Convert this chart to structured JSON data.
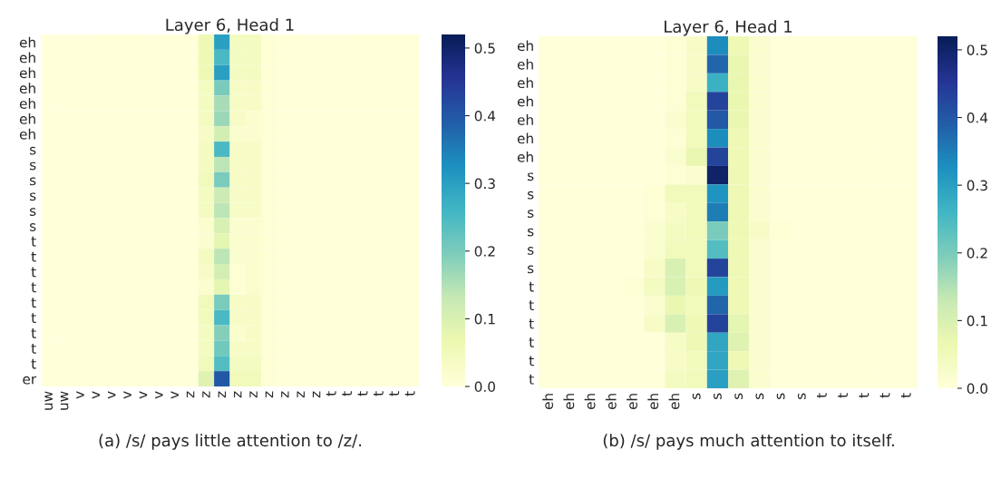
{
  "chart_data": [
    {
      "type": "heatmap",
      "title": "Layer 6, Head 1",
      "annotations": [
        "(a) /s/ pays little attention to /z/."
      ],
      "categories": [
        "uw",
        "uw",
        "v",
        "v",
        "v",
        "v",
        "v",
        "v",
        "v",
        "z",
        "z",
        "z",
        "z",
        "z",
        "z",
        "z",
        "z",
        "z",
        "t",
        "t",
        "t",
        "t",
        "t",
        "t"
      ],
      "y_categories": [
        "eh",
        "eh",
        "eh",
        "eh",
        "eh",
        "eh",
        "eh",
        "s",
        "s",
        "s",
        "s",
        "s",
        "s",
        "t",
        "t",
        "t",
        "t",
        "t",
        "t",
        "t",
        "t",
        "t",
        "er"
      ],
      "clim": [
        0,
        0.52
      ],
      "cticks": [
        {
          "value": 0,
          "label": "0.0"
        },
        0.1,
        0.2,
        0.3,
        0.4,
        0.5
      ],
      "cells": [
        [
          0,
          0,
          0,
          0,
          0,
          0,
          0,
          0,
          0,
          0,
          0.06,
          0.3,
          0.04,
          0.04,
          0.01,
          0,
          0,
          0,
          0,
          0,
          0,
          0,
          0,
          0
        ],
        [
          0,
          0,
          0,
          0,
          0,
          0,
          0,
          0,
          0,
          0,
          0.06,
          0.25,
          0.04,
          0.04,
          0.01,
          0,
          0,
          0,
          0,
          0,
          0,
          0,
          0,
          0
        ],
        [
          0,
          0,
          0,
          0,
          0,
          0,
          0,
          0,
          0,
          0,
          0.06,
          0.3,
          0.04,
          0.04,
          0.01,
          0,
          0,
          0,
          0,
          0,
          0,
          0,
          0,
          0
        ],
        [
          0,
          0,
          0,
          0,
          0,
          0,
          0,
          0,
          0,
          0,
          0.04,
          0.2,
          0.03,
          0.03,
          0.01,
          0,
          0,
          0,
          0,
          0,
          0,
          0,
          0,
          0
        ],
        [
          0,
          0,
          0,
          0,
          0,
          0,
          0,
          0,
          0,
          0,
          0.04,
          0.16,
          0.03,
          0.03,
          0.01,
          0,
          0,
          0,
          0,
          0,
          0,
          0,
          0,
          0
        ],
        [
          0,
          0,
          0,
          0,
          0,
          0,
          0,
          0,
          0,
          0,
          0.04,
          0.17,
          0.03,
          0.02,
          0.01,
          0,
          0,
          0,
          0,
          0,
          0,
          0,
          0,
          0
        ],
        [
          0,
          0,
          0,
          0,
          0,
          0,
          0,
          0,
          0,
          0,
          0.03,
          0.11,
          0.02,
          0.02,
          0.01,
          0,
          0,
          0,
          0,
          0,
          0,
          0,
          0,
          0
        ],
        [
          0,
          0,
          0,
          0,
          0,
          0,
          0,
          0,
          0,
          0,
          0.04,
          0.25,
          0.03,
          0.03,
          0.01,
          0,
          0,
          0,
          0,
          0,
          0,
          0,
          0,
          0
        ],
        [
          0,
          0,
          0,
          0,
          0,
          0,
          0,
          0,
          0,
          0,
          0.04,
          0.14,
          0.03,
          0.03,
          0.01,
          0,
          0,
          0,
          0,
          0,
          0,
          0,
          0,
          0
        ],
        [
          0,
          0,
          0,
          0,
          0,
          0,
          0,
          0,
          0,
          0,
          0.05,
          0.2,
          0.03,
          0.03,
          0.01,
          0,
          0,
          0,
          0,
          0,
          0,
          0,
          0,
          0
        ],
        [
          0,
          0,
          0,
          0,
          0,
          0,
          0,
          0,
          0,
          0,
          0.04,
          0.12,
          0.03,
          0.03,
          0.01,
          0,
          0,
          0,
          0,
          0,
          0,
          0,
          0,
          0
        ],
        [
          0,
          0,
          0,
          0,
          0,
          0,
          0,
          0,
          0,
          0,
          0.04,
          0.14,
          0.03,
          0.03,
          0.01,
          0,
          0,
          0,
          0,
          0,
          0,
          0,
          0,
          0
        ],
        [
          0,
          0,
          0,
          0,
          0,
          0,
          0,
          0,
          0,
          0,
          0.02,
          0.1,
          0.02,
          0.02,
          0.01,
          0,
          0,
          0,
          0,
          0,
          0,
          0,
          0,
          0
        ],
        [
          0,
          0,
          0,
          0,
          0,
          0,
          0,
          0,
          0,
          0,
          0.02,
          0.08,
          0.02,
          0.02,
          0.01,
          0,
          0,
          0,
          0,
          0,
          0,
          0,
          0,
          0
        ],
        [
          0,
          0,
          0,
          0,
          0,
          0,
          0,
          0,
          0,
          0,
          0.04,
          0.14,
          0.02,
          0.02,
          0.01,
          0,
          0,
          0,
          0,
          0,
          0,
          0,
          0,
          0
        ],
        [
          0,
          0,
          0,
          0,
          0,
          0,
          0,
          0,
          0,
          0,
          0.03,
          0.11,
          0.01,
          0.02,
          0.01,
          0,
          0,
          0,
          0,
          0,
          0,
          0,
          0,
          0
        ],
        [
          0,
          0,
          0,
          0,
          0,
          0,
          0,
          0,
          0,
          0,
          0.02,
          0.08,
          0.01,
          0.02,
          0.01,
          0,
          0,
          0,
          0,
          0,
          0,
          0,
          0,
          0
        ],
        [
          0,
          0,
          0,
          0,
          0,
          0,
          0,
          0,
          0,
          0,
          0.05,
          0.2,
          0.03,
          0.03,
          0.01,
          0,
          0,
          0,
          0,
          0,
          0,
          0,
          0,
          0
        ],
        [
          0,
          0,
          0,
          0,
          0,
          0,
          0,
          0,
          0,
          0,
          0.05,
          0.25,
          0.03,
          0.03,
          0.01,
          0,
          0,
          0,
          0,
          0,
          0,
          0,
          0,
          0
        ],
        [
          0,
          0,
          0,
          0,
          0,
          0,
          0,
          0,
          0,
          0,
          0.04,
          0.19,
          0.02,
          0.03,
          0.01,
          0,
          0,
          0,
          0,
          0,
          0,
          0,
          0,
          0
        ],
        [
          0,
          0,
          0,
          0,
          0,
          0,
          0,
          0,
          0,
          0,
          0.04,
          0.21,
          0.03,
          0.03,
          0.01,
          0,
          0,
          0,
          0,
          0,
          0,
          0,
          0,
          0
        ],
        [
          0,
          0,
          0,
          0,
          0,
          0,
          0,
          0,
          0,
          0,
          0.05,
          0.24,
          0.04,
          0.04,
          0.01,
          0,
          0,
          0,
          0,
          0,
          0,
          0,
          0,
          0
        ],
        [
          0,
          0,
          0,
          0,
          0,
          0,
          0,
          0,
          0,
          0,
          0.09,
          0.4,
          0.05,
          0.05,
          0.01,
          0,
          0,
          0,
          0,
          0,
          0,
          0,
          0,
          0
        ]
      ]
    },
    {
      "type": "heatmap",
      "title": "Layer 6, Head 1",
      "annotations": [
        "(b) /s/ pays much attention to itself."
      ],
      "categories": [
        "eh",
        "eh",
        "eh",
        "eh",
        "eh",
        "eh",
        "eh",
        "s",
        "s",
        "s",
        "s",
        "s",
        "s",
        "t",
        "t",
        "t",
        "t",
        "t"
      ],
      "y_categories": [
        "eh",
        "eh",
        "eh",
        "eh",
        "eh",
        "eh",
        "eh",
        "s",
        "s",
        "s",
        "s",
        "s",
        "s",
        "t",
        "t",
        "t",
        "t",
        "t",
        "t"
      ],
      "clim": [
        0,
        0.52
      ],
      "cticks": [
        {
          "value": 0,
          "label": "0.0"
        },
        0.1,
        0.2,
        0.3,
        0.4,
        0.5
      ],
      "cells": [
        [
          0,
          0,
          0,
          0,
          0,
          0,
          0.01,
          0.03,
          0.33,
          0.06,
          0.02,
          0,
          0,
          0,
          0,
          0,
          0,
          0
        ],
        [
          0,
          0,
          0,
          0,
          0,
          0,
          0.01,
          0.03,
          0.38,
          0.07,
          0.02,
          0,
          0,
          0,
          0,
          0,
          0,
          0
        ],
        [
          0,
          0,
          0,
          0,
          0,
          0,
          0.01,
          0.03,
          0.27,
          0.07,
          0.02,
          0,
          0,
          0,
          0,
          0,
          0,
          0
        ],
        [
          0,
          0,
          0,
          0,
          0,
          0,
          0.01,
          0.05,
          0.43,
          0.07,
          0.02,
          0,
          0,
          0,
          0,
          0,
          0,
          0
        ],
        [
          0,
          0,
          0,
          0,
          0,
          0,
          0.02,
          0.05,
          0.4,
          0.07,
          0.02,
          0,
          0,
          0,
          0,
          0,
          0,
          0
        ],
        [
          0,
          0,
          0,
          0,
          0,
          0,
          0.01,
          0.05,
          0.33,
          0.06,
          0.02,
          0,
          0,
          0,
          0,
          0,
          0,
          0
        ],
        [
          0,
          0,
          0,
          0,
          0,
          0,
          0.02,
          0.07,
          0.43,
          0.06,
          0.02,
          0,
          0,
          0,
          0,
          0,
          0,
          0
        ],
        [
          0,
          0,
          0,
          0,
          0,
          0,
          0.01,
          0.02,
          0.5,
          0.06,
          0.02,
          0,
          0,
          0,
          0,
          0,
          0,
          0
        ],
        [
          0,
          0,
          0,
          0,
          0,
          0.01,
          0.05,
          0.05,
          0.32,
          0.06,
          0.02,
          0,
          0,
          0,
          0,
          0,
          0,
          0
        ],
        [
          0,
          0,
          0,
          0,
          0,
          0.01,
          0.03,
          0.05,
          0.35,
          0.06,
          0.02,
          0,
          0,
          0,
          0,
          0,
          0,
          0
        ],
        [
          0,
          0,
          0,
          0,
          0,
          0.02,
          0.04,
          0.05,
          0.2,
          0.06,
          0.03,
          0.01,
          0,
          0,
          0,
          0,
          0,
          0
        ],
        [
          0,
          0,
          0,
          0,
          0,
          0.02,
          0.05,
          0.05,
          0.24,
          0.06,
          0.02,
          0,
          0,
          0,
          0,
          0,
          0,
          0
        ],
        [
          0,
          0,
          0,
          0,
          0,
          0.03,
          0.1,
          0.05,
          0.43,
          0.06,
          0.02,
          0,
          0,
          0,
          0,
          0,
          0,
          0
        ],
        [
          0,
          0,
          0,
          0,
          0.01,
          0.04,
          0.1,
          0.06,
          0.31,
          0.06,
          0.02,
          0,
          0,
          0,
          0,
          0,
          0,
          0
        ],
        [
          0,
          0,
          0,
          0,
          0,
          0.02,
          0.07,
          0.05,
          0.38,
          0.06,
          0.02,
          0,
          0,
          0,
          0,
          0,
          0,
          0
        ],
        [
          0,
          0,
          0,
          0,
          0,
          0.03,
          0.1,
          0.06,
          0.43,
          0.08,
          0.02,
          0,
          0,
          0,
          0,
          0,
          0,
          0
        ],
        [
          0,
          0,
          0,
          0,
          0,
          0,
          0.03,
          0.06,
          0.29,
          0.09,
          0.02,
          0,
          0,
          0,
          0,
          0,
          0,
          0
        ],
        [
          0,
          0,
          0,
          0,
          0,
          0,
          0.03,
          0.05,
          0.29,
          0.06,
          0.02,
          0,
          0,
          0,
          0,
          0,
          0,
          0
        ],
        [
          0,
          0,
          0,
          0,
          0,
          0,
          0.04,
          0.05,
          0.3,
          0.09,
          0.02,
          0,
          0,
          0,
          0,
          0,
          0,
          0
        ]
      ]
    }
  ]
}
